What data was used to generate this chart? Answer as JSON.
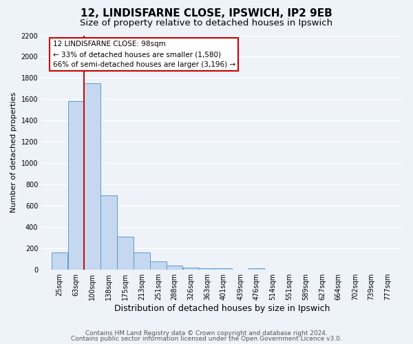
{
  "title": "12, LINDISFARNE CLOSE, IPSWICH, IP2 9EB",
  "subtitle": "Size of property relative to detached houses in Ipswich",
  "xlabel": "Distribution of detached houses by size in Ipswich",
  "ylabel": "Number of detached properties",
  "bin_labels": [
    "25sqm",
    "63sqm",
    "100sqm",
    "138sqm",
    "175sqm",
    "213sqm",
    "251sqm",
    "288sqm",
    "326sqm",
    "363sqm",
    "401sqm",
    "439sqm",
    "476sqm",
    "514sqm",
    "551sqm",
    "589sqm",
    "627sqm",
    "664sqm",
    "702sqm",
    "739sqm",
    "777sqm"
  ],
  "bin_edges": [
    25,
    63,
    100,
    138,
    175,
    213,
    251,
    288,
    326,
    363,
    401,
    439,
    476,
    514,
    551,
    589,
    627,
    664,
    702,
    739,
    777
  ],
  "bar_heights": [
    160,
    1580,
    1750,
    700,
    310,
    160,
    80,
    40,
    20,
    15,
    15,
    0,
    15,
    0,
    0,
    0,
    0,
    0,
    0,
    0,
    0
  ],
  "bar_color": "#c5d8f0",
  "bar_edge_color": "#5b9bd5",
  "red_line_x": 100,
  "annotation_title": "12 LINDISFARNE CLOSE: 98sqm",
  "annotation_line1": "← 33% of detached houses are smaller (1,580)",
  "annotation_line2": "66% of semi-detached houses are larger (3,196) →",
  "annotation_box_facecolor": "#ffffff",
  "annotation_box_edgecolor": "#cc0000",
  "red_line_color": "#cc0000",
  "ylim": [
    0,
    2200
  ],
  "yticks": [
    0,
    200,
    400,
    600,
    800,
    1000,
    1200,
    1400,
    1600,
    1800,
    2000,
    2200
  ],
  "footer_line1": "Contains HM Land Registry data © Crown copyright and database right 2024.",
  "footer_line2": "Contains public sector information licensed under the Open Government Licence v3.0.",
  "background_color": "#eef2f9",
  "grid_color": "#ffffff",
  "title_fontsize": 11,
  "subtitle_fontsize": 9.5,
  "xlabel_fontsize": 9,
  "ylabel_fontsize": 8,
  "tick_fontsize": 7,
  "annotation_fontsize": 7.5,
  "footer_fontsize": 6.5
}
